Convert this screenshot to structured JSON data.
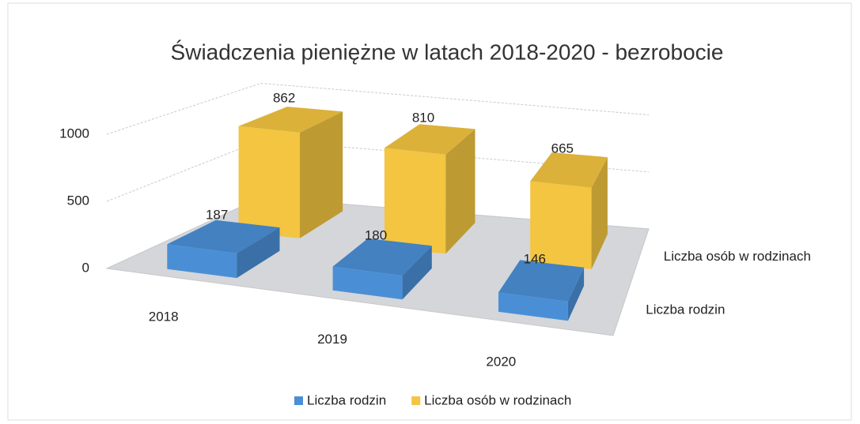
{
  "chart_data": {
    "type": "bar3d",
    "title": "Świadczenia pieniężne w latach 2018-2020 - bezrobocie",
    "categories": [
      "2018",
      "2019",
      "2020"
    ],
    "series": [
      {
        "name": "Liczba rodzin",
        "color": "#4a8fd6",
        "values": [
          187,
          180,
          146
        ]
      },
      {
        "name": "Liczba osób w rodzinach",
        "color": "#f3c540",
        "values": [
          862,
          810,
          665
        ]
      }
    ],
    "ylim": [
      0,
      1000
    ],
    "yticks": [
      0,
      500,
      1000
    ],
    "grid": true,
    "legend": "bottom"
  }
}
